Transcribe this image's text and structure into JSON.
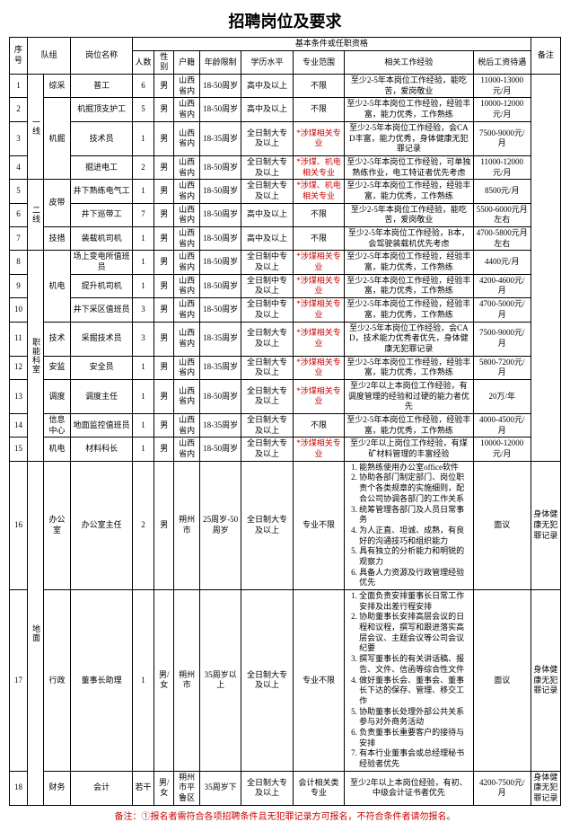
{
  "title": "招聘岗位及要求",
  "columns": {
    "seq": "序号",
    "team": "队组",
    "post": "岗位名称",
    "basic": "基本条件或任职资格",
    "count": "人数",
    "gender": "性别",
    "hukou": "户籍",
    "age": "年龄限制",
    "edu": "学历水平",
    "major": "专业范围",
    "exp": "相关工作经验",
    "salary": "税后工资待遇",
    "note": "备注"
  },
  "teams": {
    "line1": "一线",
    "line2": "二线",
    "dept": "职能科室",
    "ground": "地面"
  },
  "subteams": {
    "zongcai": "综采",
    "jijue": "机掘",
    "pidai": "皮带",
    "jicuo": "技措",
    "jidian": "机电",
    "jishu": "技术",
    "anjian": "安监",
    "diaodu": "调度",
    "xinxi": "信息中心",
    "jidian2": "机电",
    "bangong": "办公室",
    "xingzheng": "行政",
    "caiwu": "财务"
  },
  "common": {
    "male": "男",
    "mf": "男/女",
    "ruogan": "若干",
    "shanxi": "山西省内",
    "shuozhou": "朔州市",
    "pinglu": "朔州市平鲁区",
    "age1850": "18-50周岁",
    "age1835": "18-35周岁",
    "age2550": "25周岁-50周岁",
    "age35plus": "35周岁以上",
    "age35down": "35周岁下",
    "hs": "高中及以上",
    "dazhuan": "全日制大专及以上",
    "zhongzhuan": "全日制中专及以上",
    "nolimit": "不限",
    "zhuanyebuxian": "专业不限",
    "shemei": "*涉煤相关专业",
    "shemeiJD": "*涉煤、机电相关专业",
    "kuaiji": "会计相关类专业",
    "mianyi": "面议",
    "note_health": "身体健康无犯罪记录"
  },
  "rows": [
    {
      "n": "1",
      "post": "普工",
      "cnt": "6",
      "edu": "hs",
      "maj": "nolimit",
      "exp": "至少2-5年本岗位工作经验，能吃苦，爱岗敬业",
      "sal": "11000-13000元/月"
    },
    {
      "n": "2",
      "post": "机掘顶支护工",
      "cnt": "5",
      "edu": "hs",
      "maj": "nolimit",
      "exp": "至少2-5年本岗位工作经验，经验丰富，能力优秀，工作熟练",
      "sal": "10000-12000元/月"
    },
    {
      "n": "3",
      "post": "技术员",
      "cnt": "1",
      "age": "age1835",
      "edu": "dazhuan",
      "maj": "shemei",
      "exp": "至少2-5年本岗位工作经验，会CAD丰富，能力优秀，身体健康无犯罪记录",
      "sal": "7500-9000元/月"
    },
    {
      "n": "4",
      "post": "掘进电工",
      "cnt": "2",
      "edu": "dazhuan",
      "maj": "shemeiJD",
      "exp": "至少2-5年本岗位工作经验，可单独熟练作业，电工特证者优先考虑",
      "sal": "11000-12000元/月"
    },
    {
      "n": "5",
      "post": "井下熟练电气工",
      "cnt": "1",
      "edu": "dazhuan",
      "maj": "shemeiJD",
      "exp": "至少2-5年本岗位工作经验，经验丰富，能力优秀，工作熟练",
      "sal": "8500元/月"
    },
    {
      "n": "6",
      "post": "井下巡带工",
      "cnt": "7",
      "edu": "hs",
      "maj": "nolimit",
      "exp": "至少2-5年本岗位工作经验，能吃苦，爱岗敬业",
      "sal": "5500-6000元月左右"
    },
    {
      "n": "7",
      "post": "装载机司机",
      "cnt": "1",
      "edu": "hs",
      "maj": "nolimit",
      "exp": "至少2-5年本岗位工作经验，B本，会驾驶装载机优先考虑",
      "sal": "4700-5800元月左右"
    },
    {
      "n": "8",
      "post": "场上变电所值班员",
      "cnt": "1",
      "edu": "zhongzhuan",
      "maj": "shemei",
      "exp": "至少2-5年本岗位工作经验，经验丰富，能力优秀，工作熟练",
      "sal": "4400元/月"
    },
    {
      "n": "9",
      "post": "提升机司机",
      "cnt": "1",
      "edu": "zhongzhuan",
      "maj": "shemei",
      "exp": "至少2-5年本岗位工作经验，经验丰富，能力优秀，工作熟练",
      "sal": "4200-4600元/月"
    },
    {
      "n": "10",
      "post": "井下采区值班员",
      "cnt": "3",
      "edu": "zhongzhuan",
      "maj": "shemei",
      "exp": "至少2-5年本岗位工作经验，经验丰富，能力优秀，工作熟练",
      "sal": "4700-5000元/月"
    },
    {
      "n": "11",
      "post": "采掘技术员",
      "cnt": "3",
      "age": "age1835",
      "edu": "dazhuan",
      "maj": "shemei",
      "exp": "至少2-5年本岗位工作经验，会CAD，技术能力优秀者优先，身体健康无犯罪记录",
      "sal": "7500-9000元/月"
    },
    {
      "n": "12",
      "post": "安全员",
      "cnt": "1",
      "age": "age1835",
      "edu": "dazhuan",
      "maj": "shemei",
      "exp": "至少2-5年本岗位工作经验，经验丰富，能力优秀，工作熟练",
      "sal": "5800-7200元/月"
    },
    {
      "n": "13",
      "post": "调度主任",
      "cnt": "1",
      "edu": "dazhuan",
      "maj": "shemei",
      "exp": "至少2年以上本岗位工作经验，有调度管理的经验和过硬的能力者优先",
      "sal": "20万/年"
    },
    {
      "n": "14",
      "post": "地面监控值班员",
      "cnt": "1",
      "age": "age1835",
      "edu": "dazhuan",
      "maj": "nolimit",
      "exp": "至少2-5年本岗位工作经验，经验丰富，能力优秀，工作熟练",
      "sal": "4000-4500元/月"
    },
    {
      "n": "15",
      "post": "材料科长",
      "cnt": "1",
      "edu": "dazhuan",
      "maj": "shemei",
      "exp": "至少2年以上岗位工作经验，有煤矿材料管理的丰富经验",
      "sal": "10000-12000元/月"
    }
  ],
  "row16": {
    "n": "16",
    "post": "办公室主任",
    "cnt": "2",
    "exp": [
      "能熟练使用办公室office软件",
      "协助各部门制定部门、岗位职责个各类规章的实施细则，配合公司协调各部门的工作关系",
      "统筹管理各部门及人员日常事务",
      "为人正直、坦诚、成熟，有良好的沟通技巧和组织能力",
      "具有独立的分析能力和明锐的观察力",
      "具备人力资源及行政管理经验优先"
    ]
  },
  "row17": {
    "n": "17",
    "post": "董事长助理",
    "cnt": "1",
    "exp": [
      "全面负责安排董事长日常工作安排及出差行程安排",
      "协助董事长安排高层会议的日程和议程，撰写和跟进落实高层会议、主题会议等公司会议纪要",
      "撰写董事长的有关讲话稿、报告、文件、信函等综合性文件",
      "做好董事长会、董事会、董事长下达的保存、管理、移交工作",
      "协助董事长处理外部公共关系参与对外商务活动",
      "负责董事长重要客户的接待与安排",
      "有本行业董事会或总经理秘书经验者优先"
    ]
  },
  "row18": {
    "n": "18",
    "post": "会计",
    "exp": "至少2年以上本岗位经验，有初、中级会计证书者优先",
    "sal": "4200-7500元/月"
  },
  "footnote": "备注：①报名者需符合各项招聘条件且无犯罪记录方可报名，不符合条件者请勿报名。"
}
